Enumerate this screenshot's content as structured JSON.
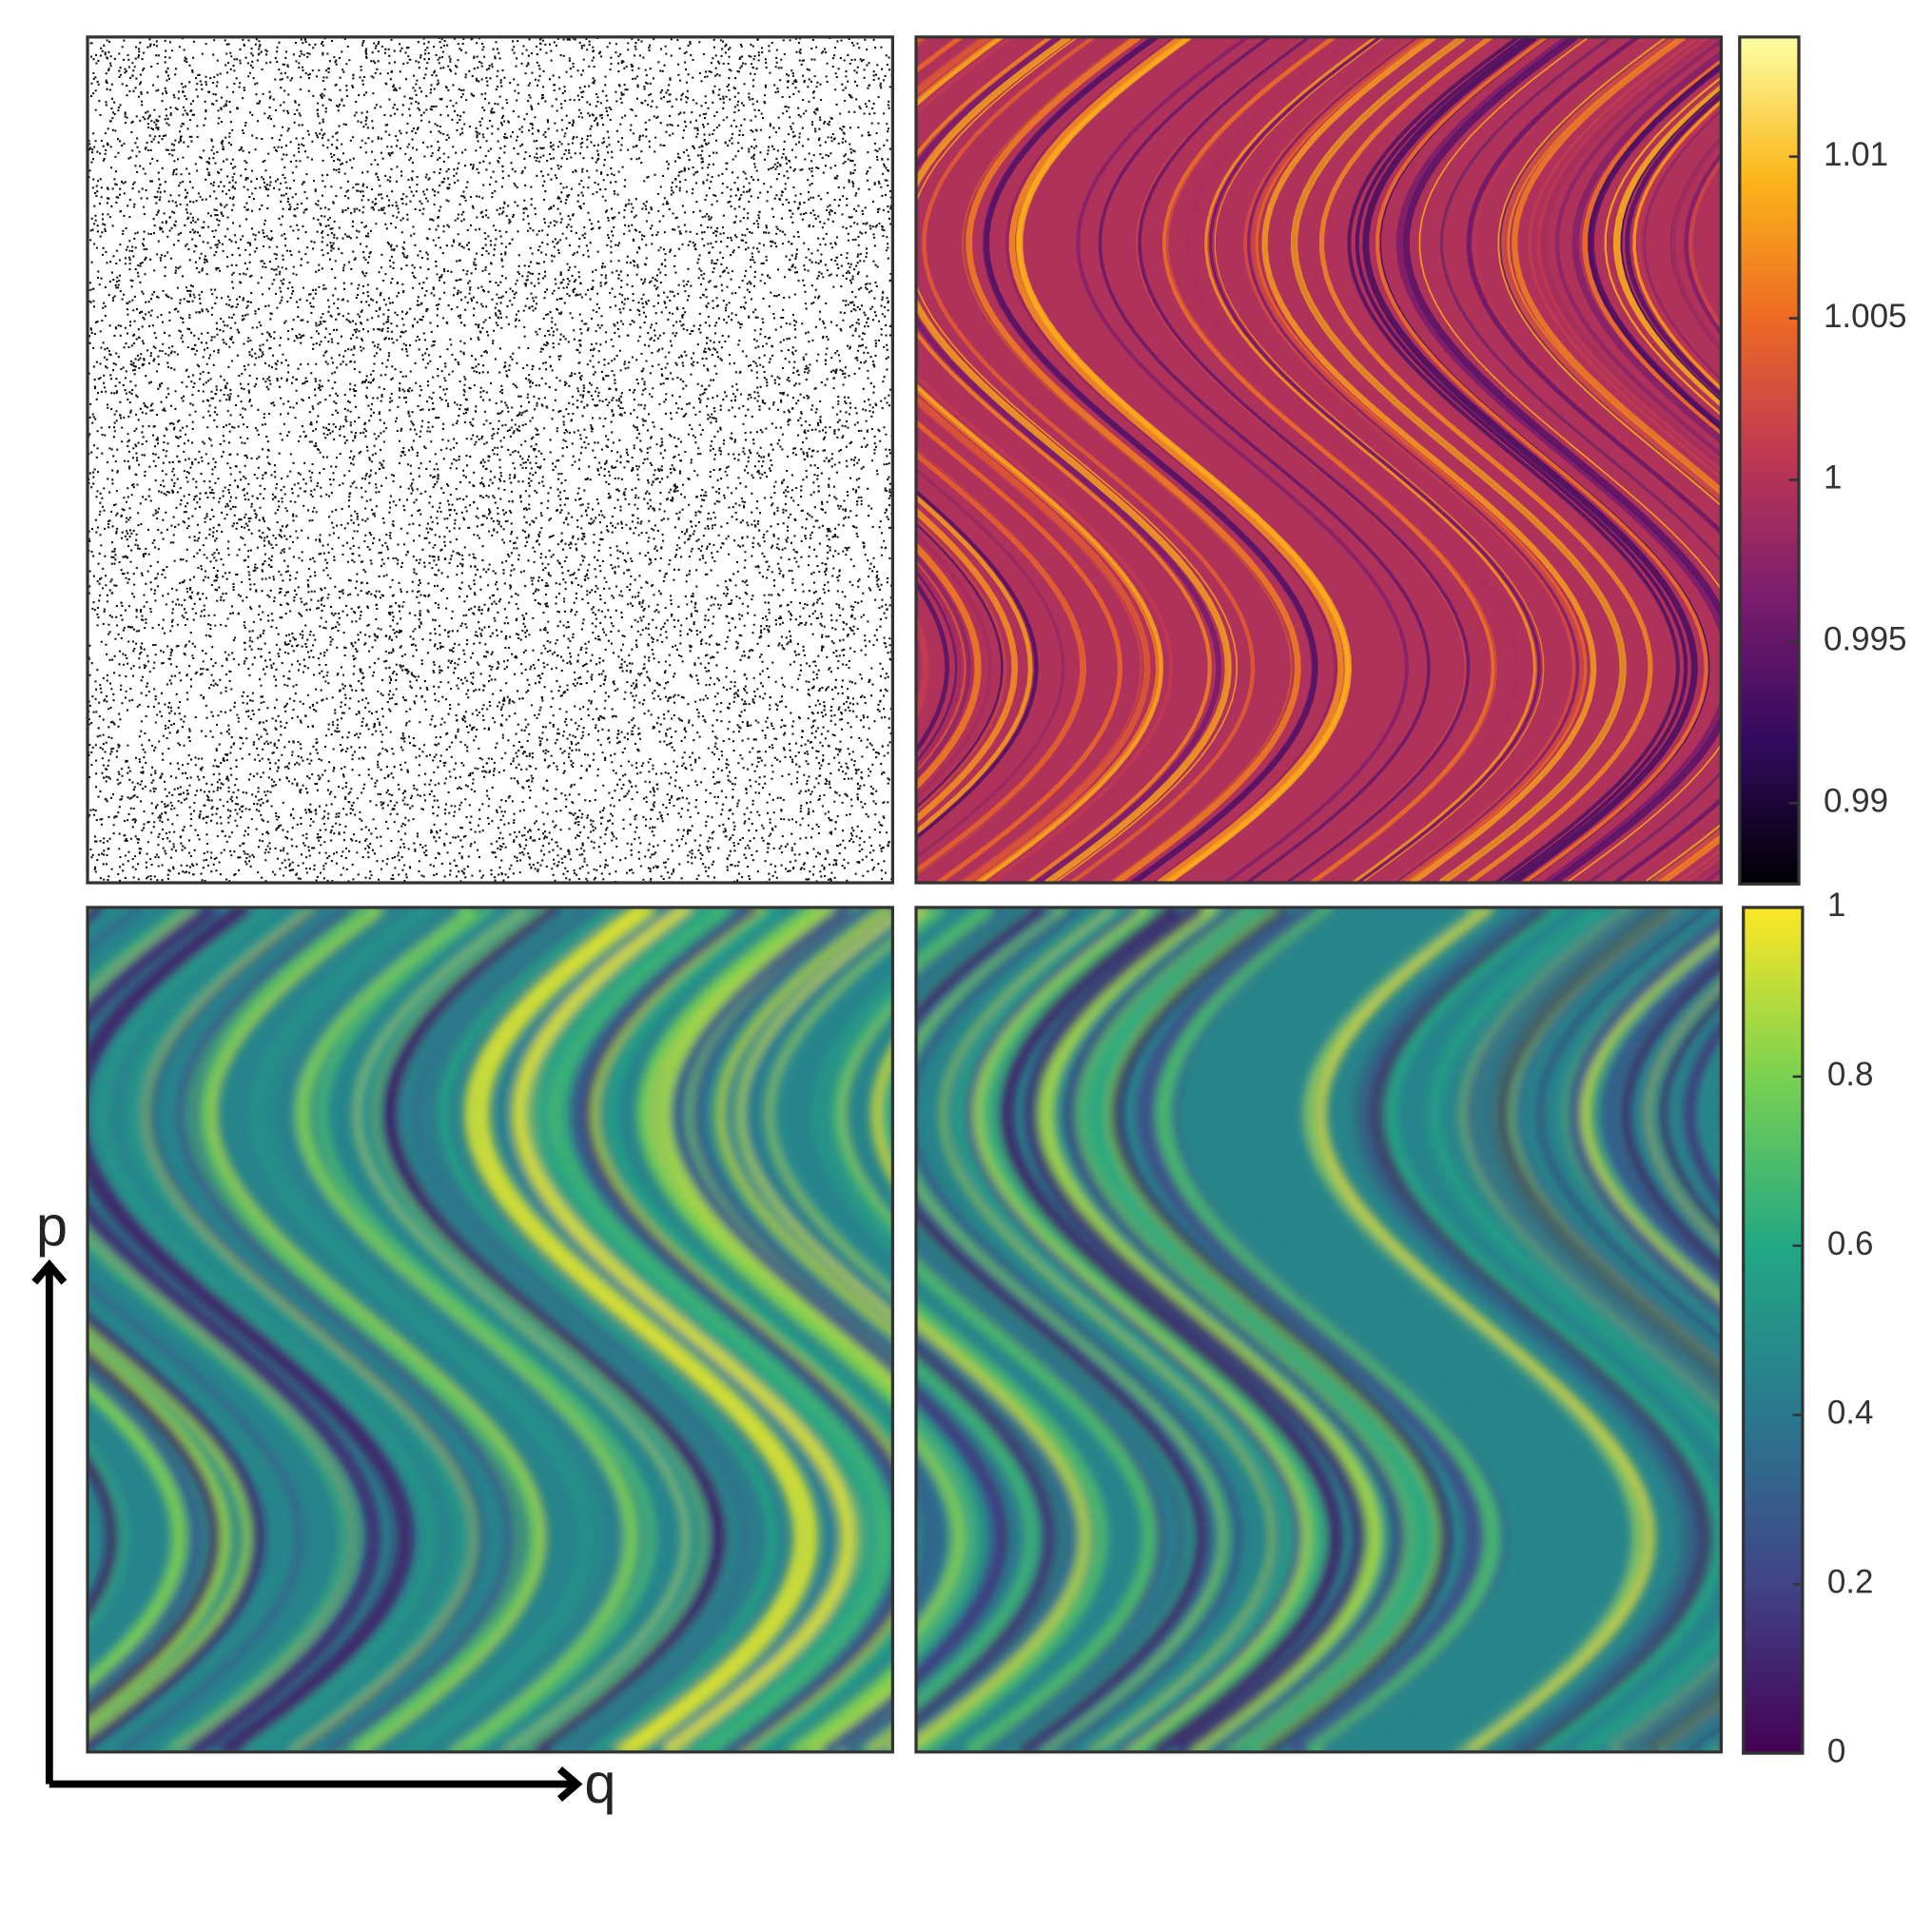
{
  "colorbars": [
    {
      "lim": [
        0.9875,
        1.0137
      ],
      "ticks": [
        0.99,
        0.995,
        1,
        1.005,
        1.01
      ],
      "colors": [
        "#000004",
        "#320a5e",
        "#781c6d",
        "#bc3754",
        "#ed6925",
        "#fbb61a",
        "#fcffa4"
      ]
    },
    {
      "lim": [
        0,
        1
      ],
      "ticks": [
        0,
        0.2,
        0.4,
        0.6,
        0.8,
        1
      ],
      "colors": [
        "#440154",
        "#414487",
        "#2a788e",
        "#22a884",
        "#7ad151",
        "#fde725"
      ]
    }
  ],
  "axes": {
    "x_label": "q",
    "y_label": "p"
  }
}
